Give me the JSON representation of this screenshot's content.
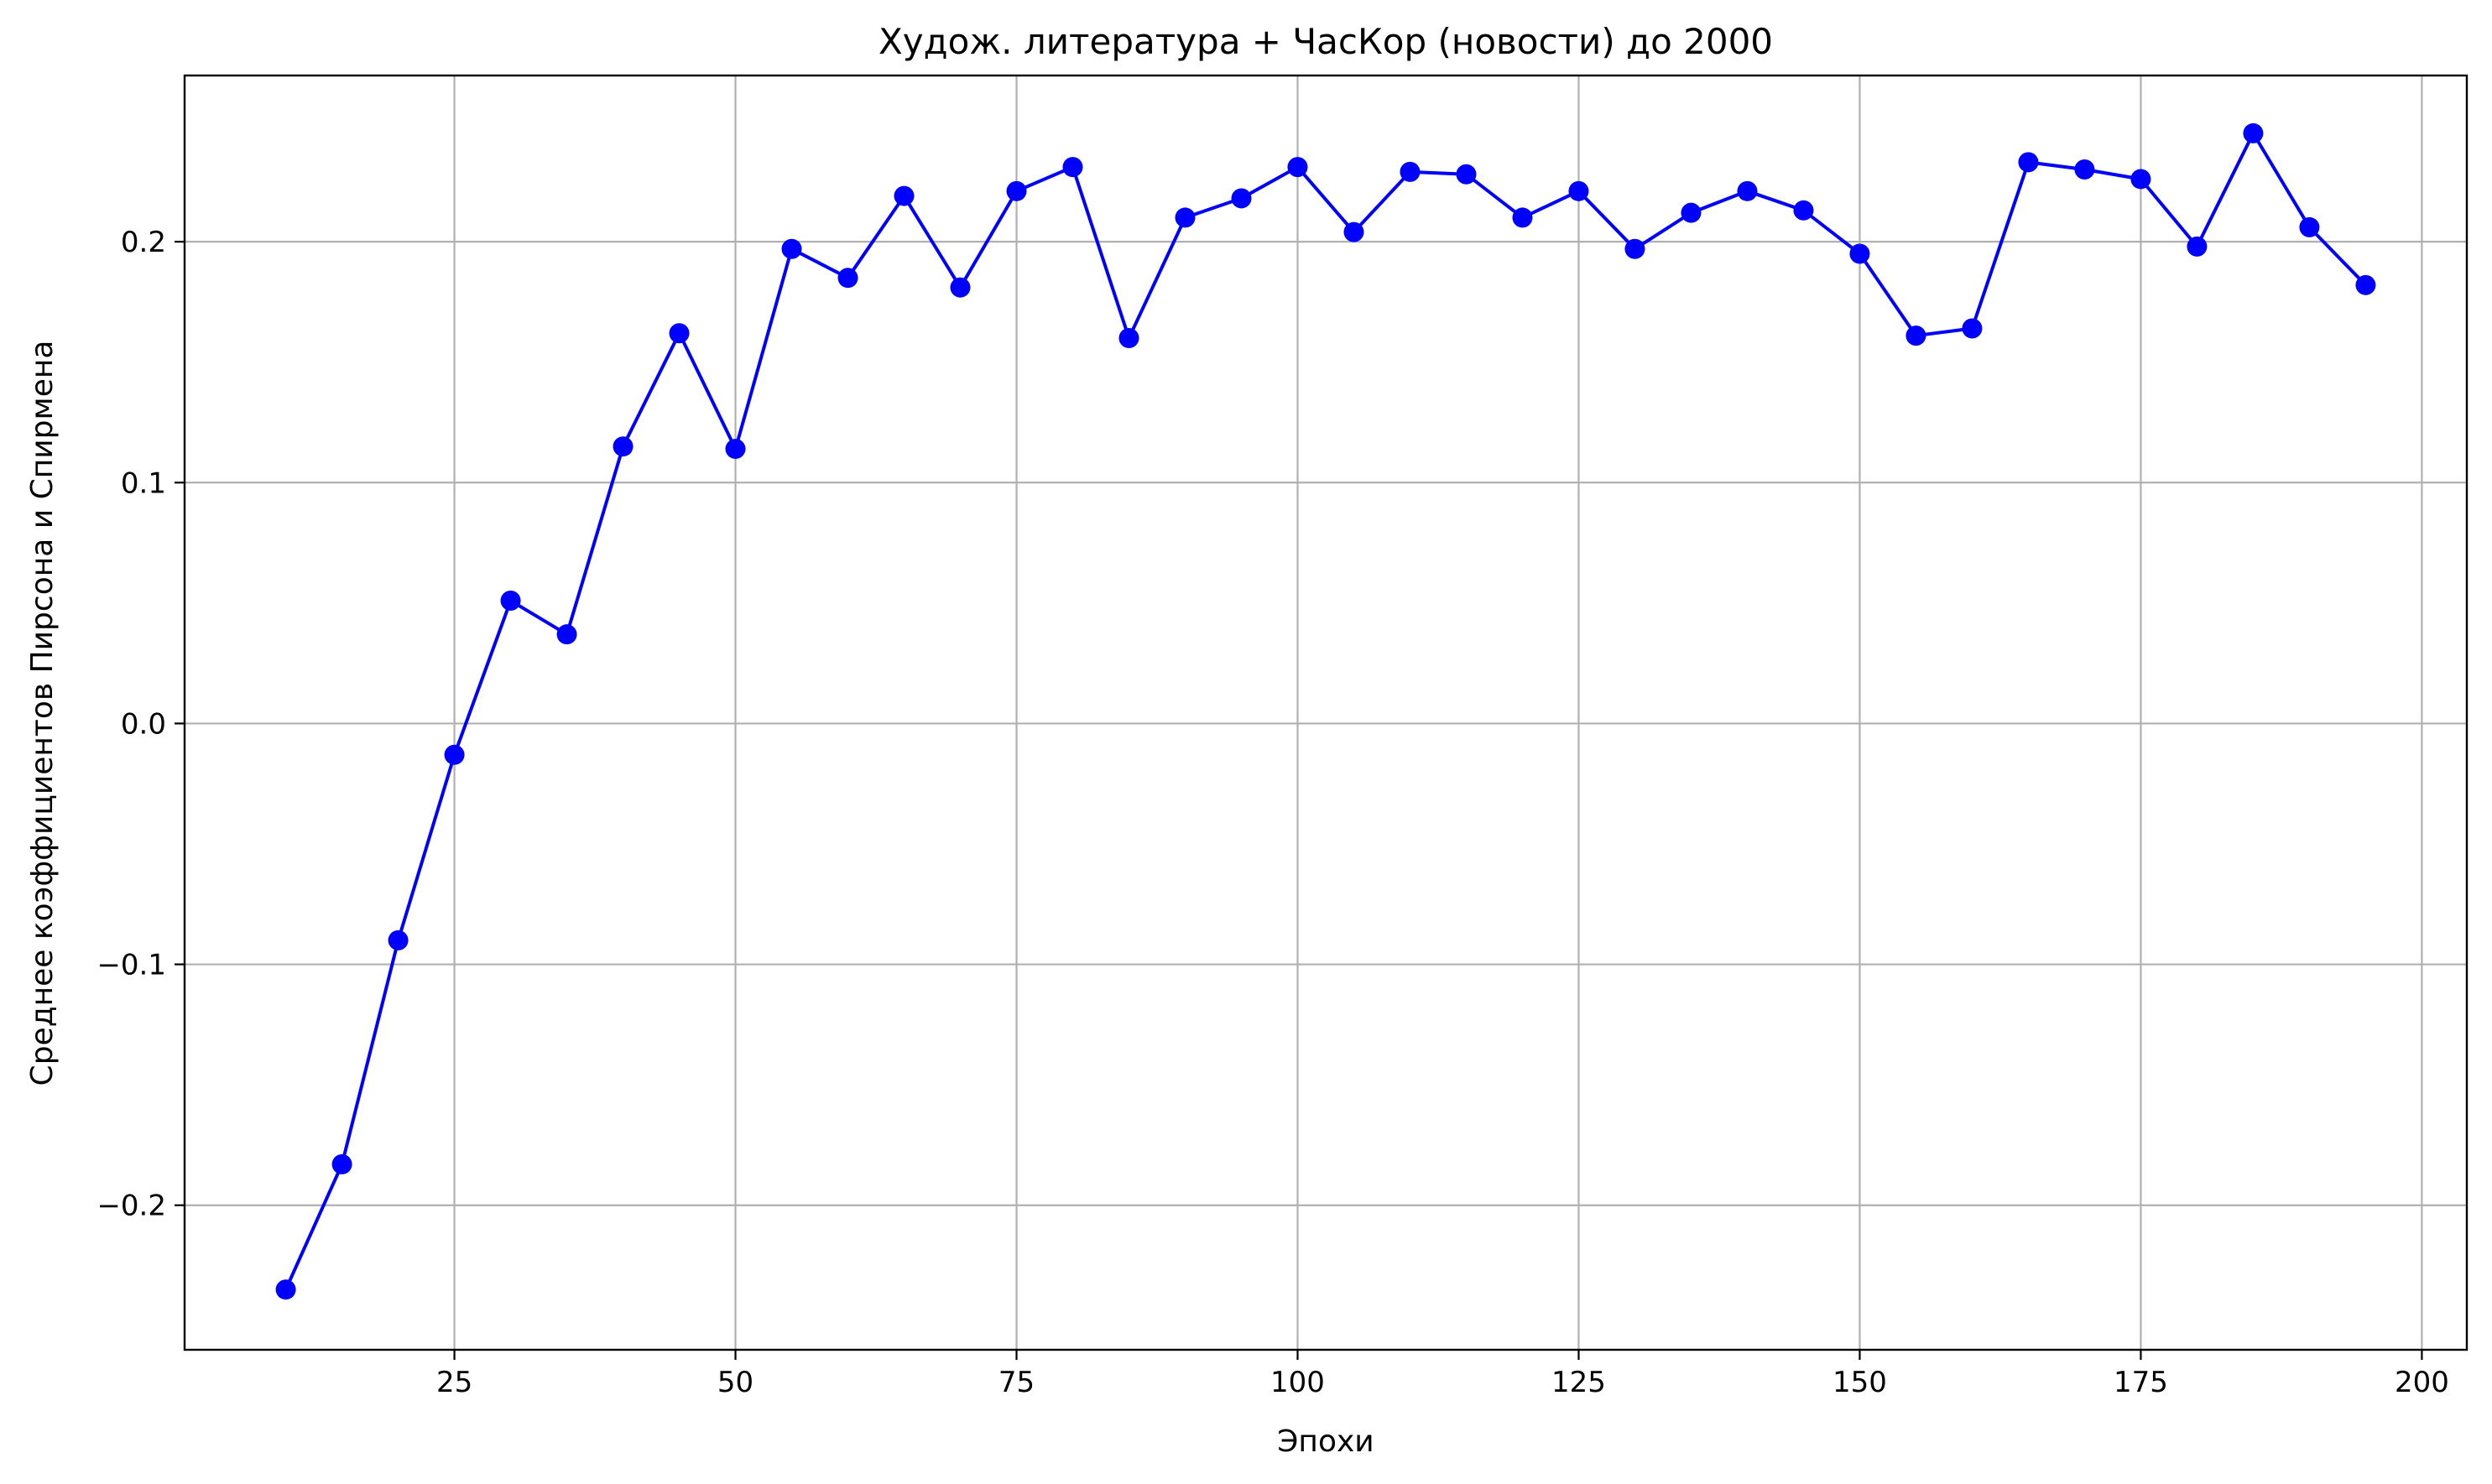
{
  "chart_data": {
    "type": "line",
    "title": "Худож. литература + ЧасКор (новости) до 2000",
    "xlabel": "Эпохи",
    "ylabel": "Среднее коэффициентов Пирсона и Спирмена",
    "xlim": [
      1,
      204
    ],
    "ylim": [
      -0.26,
      0.269
    ],
    "x_ticks": [
      25,
      50,
      75,
      100,
      125,
      150,
      175,
      200
    ],
    "x_tick_labels": [
      "25",
      "50",
      "75",
      "100",
      "125",
      "150",
      "175",
      "200"
    ],
    "y_ticks": [
      -0.2,
      -0.1,
      0.0,
      0.1,
      0.2
    ],
    "y_tick_labels": [
      "−0.2",
      "−0.1",
      "0.0",
      "0.1",
      "0.2"
    ],
    "grid": true,
    "color": "#0000ff",
    "series": [
      {
        "x": [
          10,
          15,
          20,
          25,
          30,
          35,
          40,
          45,
          50,
          55,
          60,
          65,
          70,
          75,
          80,
          85,
          90,
          95,
          100,
          105,
          110,
          115,
          120,
          125,
          130,
          135,
          140,
          145,
          150,
          155,
          160,
          165,
          170,
          175,
          180,
          185,
          190,
          195
        ],
        "values": [
          -0.235,
          -0.183,
          -0.09,
          -0.013,
          0.051,
          0.037,
          0.115,
          0.162,
          0.114,
          0.197,
          0.185,
          0.219,
          0.181,
          0.221,
          0.231,
          0.16,
          0.21,
          0.218,
          0.231,
          0.204,
          0.229,
          0.228,
          0.21,
          0.221,
          0.197,
          0.212,
          0.221,
          0.213,
          0.195,
          0.161,
          0.164,
          0.233,
          0.23,
          0.226,
          0.198,
          0.245,
          0.206,
          0.182
        ]
      }
    ]
  }
}
